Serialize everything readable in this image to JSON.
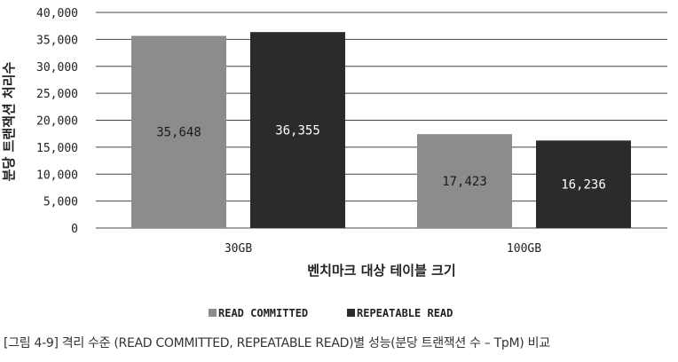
{
  "chart_data": {
    "type": "bar",
    "categories": [
      "30GB",
      "100GB"
    ],
    "series": [
      {
        "name": "READ COMMITTED",
        "values": [
          35648,
          17423
        ],
        "value_labels": [
          "35,648",
          "17,423"
        ],
        "color": "#8c8c8c"
      },
      {
        "name": "REPEATABLE READ",
        "values": [
          36355,
          16236
        ],
        "value_labels": [
          "36,355",
          "16,236"
        ],
        "color": "#2b2b2b"
      }
    ],
    "yticks": [
      {
        "value": 0,
        "label": "0"
      },
      {
        "value": 5000,
        "label": "5,000"
      },
      {
        "value": 10000,
        "label": "10,000"
      },
      {
        "value": 15000,
        "label": "15,000"
      },
      {
        "value": 20000,
        "label": "20,000"
      },
      {
        "value": 25000,
        "label": "25,000"
      },
      {
        "value": 30000,
        "label": "30,000"
      },
      {
        "value": 35000,
        "label": "35,000"
      },
      {
        "value": 40000,
        "label": "40,000"
      }
    ],
    "ylim": [
      0,
      40000
    ],
    "xlabel": "벤치마크 대상 테이블 크기",
    "ylabel": "분당 트랜잭션 처리수",
    "grid": true,
    "legend_position": "bottom-center"
  },
  "caption": "[그림 4-9] 격리 수준 (READ COMMITTED, REPEATABLE READ)별 성능(분당 트랜잭션 수 – TpM) 비교"
}
